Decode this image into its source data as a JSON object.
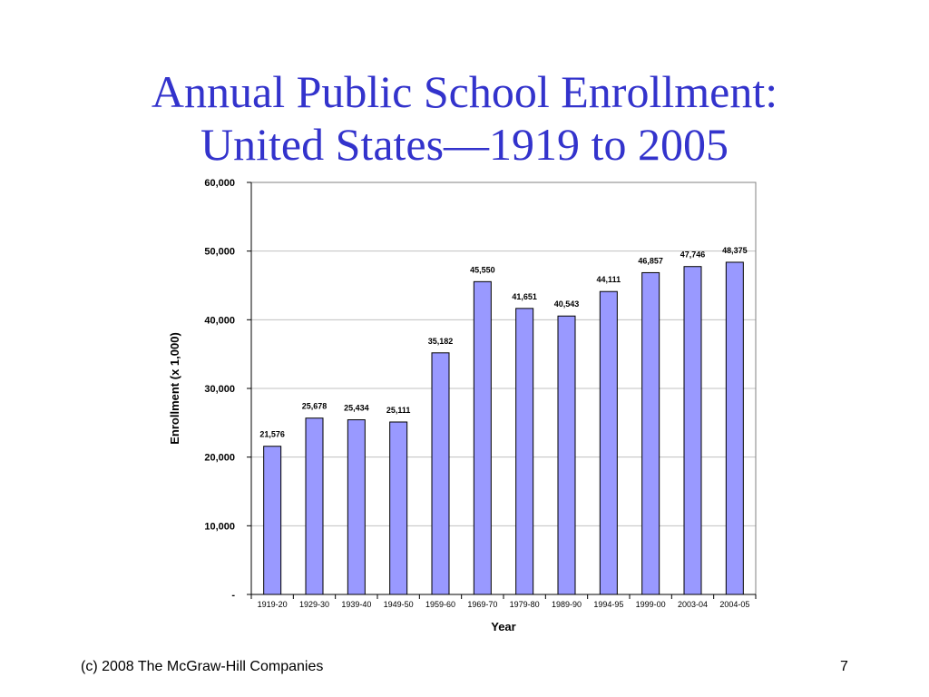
{
  "slide": {
    "title_line1": "Annual Public School Enrollment:",
    "title_line2": "United States—1919 to 2005",
    "footer_left": "(c) 2008 The McGraw-Hill Companies",
    "page_number": "7"
  },
  "colors": {
    "title": "#3333cc",
    "bar_fill": "#9999ff",
    "bar_stroke": "#000000",
    "plot_border": "#808080",
    "gridline": "#c0c0c0"
  },
  "chart_data": {
    "type": "bar",
    "xlabel": "Year",
    "ylabel": "Enrollment (x 1,000)",
    "ylim": [
      0,
      60000
    ],
    "yticks": [
      0,
      10000,
      20000,
      30000,
      40000,
      50000,
      60000
    ],
    "ytick_labels": [
      "-",
      "10,000",
      "20,000",
      "30,000",
      "40,000",
      "50,000",
      "60,000"
    ],
    "grid": true,
    "categories": [
      "1919-20",
      "1929-30",
      "1939-40",
      "1949-50",
      "1959-60",
      "1969-70",
      "1979-80",
      "1989-90",
      "1994-95",
      "1999-00",
      "2003-04",
      "2004-05"
    ],
    "values": [
      21576,
      25678,
      25434,
      25111,
      35182,
      45550,
      41651,
      40543,
      44111,
      46857,
      47746,
      48375
    ],
    "data_labels": [
      "21,576",
      "25,678",
      "25,434",
      "25,111",
      "35,182",
      "45,550",
      "41,651",
      "40,543",
      "44,111",
      "46,857",
      "47,746",
      "48,375"
    ]
  }
}
